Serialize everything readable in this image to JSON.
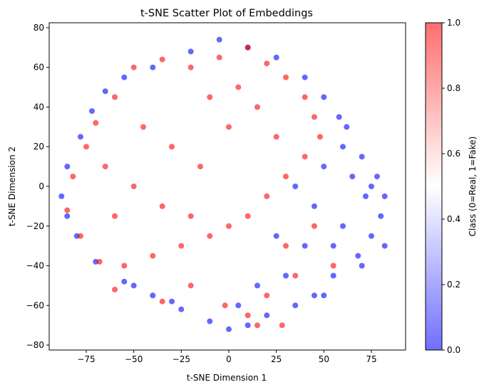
{
  "chart_data": {
    "type": "scatter",
    "title": "t-SNE Scatter Plot of Embeddings",
    "xlabel": "t-SNE Dimension 1",
    "ylabel": "t-SNE Dimension 2",
    "xlim": [
      -94.5,
      93
    ],
    "ylim": [
      -82.5,
      82.5
    ],
    "xticks": [
      -75,
      -50,
      -25,
      0,
      25,
      50,
      75
    ],
    "yticks": [
      -80,
      -60,
      -40,
      -20,
      0,
      20,
      40,
      60,
      80
    ],
    "grid": false,
    "colormap": "bwr",
    "colors": {
      "real": "#0000ff",
      "fake": "#ff0000",
      "point_alpha": 0.6
    },
    "colorbar": {
      "label": "Class (0=Real, 1=Fake)",
      "range": [
        0,
        1
      ],
      "ticks": [
        "0.0",
        "0.2",
        "0.4",
        "0.6",
        "0.8",
        "1.0"
      ]
    },
    "classes": [
      {
        "label": "0",
        "color": "#0000ff"
      },
      {
        "label": "1",
        "color": "#ff0000"
      }
    ],
    "series": [
      {
        "class": 0,
        "description_region": "full circular cloud, dominant lower-right",
        "points": [
          [
            60,
            20
          ],
          [
            65,
            5
          ],
          [
            72,
            -5
          ],
          [
            80,
            -15
          ],
          [
            75,
            -25
          ],
          [
            68,
            -35
          ],
          [
            55,
            -45
          ],
          [
            45,
            -55
          ],
          [
            35,
            -60
          ],
          [
            20,
            -65
          ],
          [
            10,
            -70
          ],
          [
            0,
            -72
          ],
          [
            -10,
            -68
          ],
          [
            -25,
            -62
          ],
          [
            -40,
            -55
          ],
          [
            -55,
            -48
          ],
          [
            -70,
            -38
          ],
          [
            -80,
            -25
          ],
          [
            -85,
            -15
          ],
          [
            -88,
            -5
          ],
          [
            -85,
            10
          ],
          [
            -78,
            25
          ],
          [
            -72,
            38
          ],
          [
            -65,
            48
          ],
          [
            -55,
            55
          ],
          [
            -40,
            60
          ],
          [
            -20,
            68
          ],
          [
            -5,
            74
          ],
          [
            10,
            70
          ],
          [
            25,
            65
          ],
          [
            40,
            55
          ],
          [
            50,
            45
          ],
          [
            58,
            35
          ],
          [
            70,
            15
          ],
          [
            78,
            5
          ],
          [
            82,
            -5
          ],
          [
            50,
            10
          ],
          [
            45,
            -10
          ],
          [
            40,
            -30
          ],
          [
            30,
            -45
          ],
          [
            15,
            -50
          ],
          [
            60,
            -20
          ],
          [
            55,
            -30
          ],
          [
            35,
            0
          ],
          [
            25,
            -25
          ],
          [
            50,
            -55
          ],
          [
            -30,
            -58
          ],
          [
            -50,
            -50
          ],
          [
            5,
            -60
          ],
          [
            70,
            -40
          ],
          [
            62,
            30
          ],
          [
            82,
            -30
          ],
          [
            75,
            0
          ]
        ]
      },
      {
        "class": 1,
        "description_region": "upper-left majority of cloud",
        "points": [
          [
            -60,
            45
          ],
          [
            -50,
            60
          ],
          [
            -35,
            64
          ],
          [
            -20,
            60
          ],
          [
            -5,
            65
          ],
          [
            10,
            70
          ],
          [
            20,
            62
          ],
          [
            30,
            55
          ],
          [
            40,
            45
          ],
          [
            45,
            35
          ],
          [
            48,
            25
          ],
          [
            40,
            15
          ],
          [
            30,
            5
          ],
          [
            20,
            -5
          ],
          [
            10,
            -15
          ],
          [
            0,
            -20
          ],
          [
            -10,
            -25
          ],
          [
            -25,
            -30
          ],
          [
            -40,
            -35
          ],
          [
            -55,
            -40
          ],
          [
            -68,
            -38
          ],
          [
            -78,
            -25
          ],
          [
            -85,
            -12
          ],
          [
            -82,
            5
          ],
          [
            -75,
            20
          ],
          [
            -70,
            32
          ],
          [
            -45,
            30
          ],
          [
            -30,
            20
          ],
          [
            -15,
            10
          ],
          [
            0,
            30
          ],
          [
            15,
            40
          ],
          [
            25,
            25
          ],
          [
            -50,
            0
          ],
          [
            -35,
            -10
          ],
          [
            -20,
            -15
          ],
          [
            -60,
            -15
          ],
          [
            -65,
            10
          ],
          [
            5,
            50
          ],
          [
            -10,
            45
          ],
          [
            30,
            -30
          ],
          [
            35,
            -45
          ],
          [
            20,
            -55
          ],
          [
            10,
            -65
          ],
          [
            15,
            -70
          ],
          [
            -20,
            -50
          ],
          [
            45,
            -20
          ],
          [
            55,
            -40
          ],
          [
            -60,
            -52
          ],
          [
            -35,
            -58
          ],
          [
            28,
            -70
          ],
          [
            -2,
            -60
          ]
        ]
      }
    ]
  }
}
